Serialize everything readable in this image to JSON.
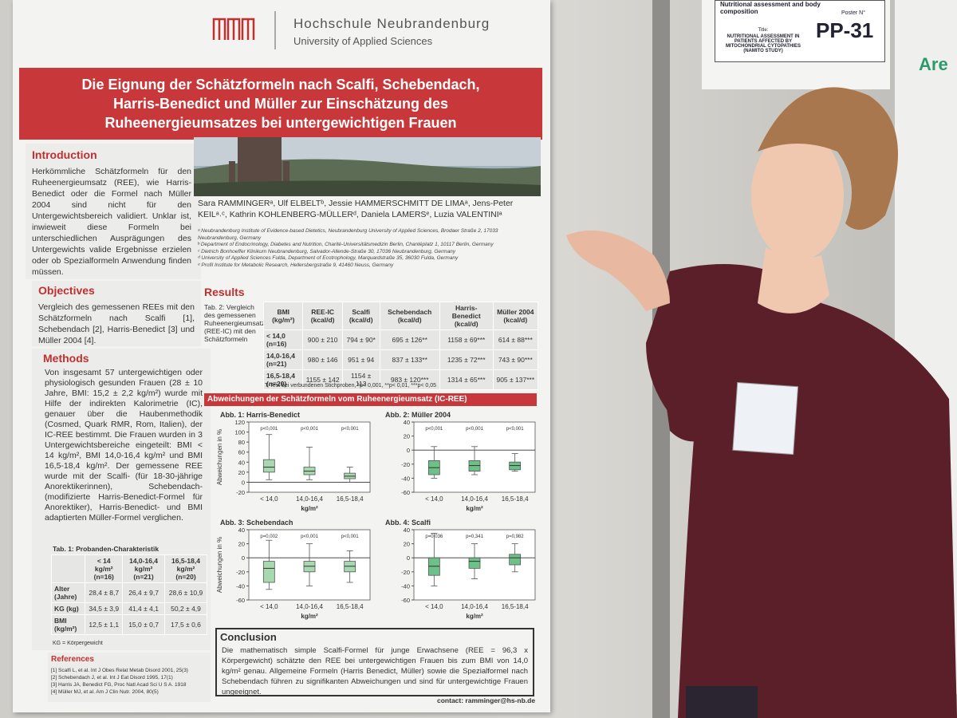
{
  "poster": {
    "logo_name": "Hochschule Neubrandenburg",
    "logo_sub": "University of Applied Sciences",
    "title": "Die Eignung der Schätzformeln nach Scalfi, Schebendach, Harris-Benedict und Müller zur Einschätzung des Ruheenergieumsatzes bei untergewichtigen Frauen",
    "authors": "Sara RAMMINGERᵃ, Ulf ELBELTᵇ, Jessie HAMMERSCHMITT DE LIMAᵃ, Jens-Peter KEILᵃ˒ᶜ, Kathrin KOHLENBERG-MÜLLERᵈ, Daniela LAMERSᵉ, Luzia VALENTINIᵃ",
    "affiliations": [
      "ᵃ Neubrandenburg Institute of Evidence-based Dietetics, Neubrandenburg University of Applied Sciences, Brodaer Straße 2, 17033 Neubrandenburg, Germany",
      "ᵇ Department of Endocrinology, Diabetes and Nutrition, Charité-Universitätsmedizin Berlin, Chantéplatz 1, 10117 Berlin, Germany",
      "ᶜ Dietrich Bonhoeffer Klinikum Neubrandenburg, Salvador-Allende-Straße 30, 17036 Neubrandenburg, Germany",
      "ᵈ University of Applied Sciences Fulda, Department of Ecotrophology, Marquardstraße 35, 36030 Fulda, Germany",
      "ᵉ Profil Institute for Metabolic Research, Hellersbergstraße 9, 41460 Neuss, Germany"
    ],
    "introduction": {
      "heading": "Introduction",
      "text": "Herkömmliche Schätzformeln für den Ruheenergieumsatz (REE), wie Harris-Benedict oder die Formel nach Müller 2004 sind nicht für den Untergewichtsbereich validiert. Unklar ist, inwieweit diese Formeln bei unterschiedlichen Ausprägungen des Untergewichts valide Ergebnisse erzielen oder ob Spezialformeln Anwendung finden müssen."
    },
    "objectives": {
      "heading": "Objectives",
      "text": "Vergleich des gemessenen REEs mit den Schätzformeln nach Scalfi [1], Schebendach [2], Harris-Benedict [3] und Müller 2004 [4]."
    },
    "methods": {
      "heading": "Methods",
      "text": "Von insgesamt 57 untergewichtigen oder physiologisch gesunden Frauen (28 ± 10 Jahre, BMI: 15,2 ± 2,2 kg/m²) wurde mit Hilfe der indirekten Kalorimetrie (IC), genauer über die Haubenmethodik (Cosmed, Quark RMR, Rom, Italien), der IC-REE bestimmt. Die Frauen wurden in 3 Untergewichtsbereiche eingeteilt: BMI < 14 kg/m², BMI 14,0-16,4 kg/m² und BMI 16,5-18,4 kg/m². Der gemessene REE wurde mit der Scalfi- (für 18-30-jährige Anorektikerinnen), Schebendach- (modifizierte Harris-Benedict-Formel für Anorektiker), Harris-Benedict- und BMI adaptierten Müller-Formel verglichen."
    },
    "table1": {
      "title": "Tab. 1: Probanden-Charakteristik",
      "header": [
        "< 14 kg/m² (n=16)",
        "14,0-16,4 kg/m² (n=21)",
        "16,5-18,4 kg/m² (n=20)"
      ],
      "row_labels": [
        "Alter (Jahre)",
        "KG (kg)",
        "BMI (kg/m²)"
      ],
      "rows": [
        [
          "28,4 ± 8,7",
          "26,4 ± 9,7",
          "28,6 ± 10,9"
        ],
        [
          "34,5 ± 3,9",
          "41,4 ± 4,1",
          "50,2 ± 4,9"
        ],
        [
          "12,5 ± 1,1",
          "15,0 ± 0,7",
          "17,5 ± 0,6"
        ]
      ],
      "note": "KG = Körpergewicht"
    },
    "references": {
      "heading": "References",
      "items": [
        "[1] Scalfi L, et al. Int J Obes Relat Metab Disord 2001, 25(3)",
        "[2] Schebendach J, et al. Int J Eat Disord 1995, 17(1)",
        "[3] Harris JA, Benedict FG, Proc Natl Acad Sci U S A. 1918",
        "[4] Müller MJ, et al. Am J Clin Nutr. 2004, 80(5)"
      ]
    },
    "results": {
      "heading": "Results"
    },
    "table2": {
      "caption": "Tab. 2: Vergleich des gemessenen Ruheenergieumsatzes (REE-IC) mit den Schätzformeln",
      "header": [
        "BMI (kg/m²)",
        "REE-IC (kcal/d)",
        "Scalfi (kcal/d)",
        "Schebendach (kcal/d)",
        "Harris-Benedict (kcal/d)",
        "Müller 2004 (kcal/d)"
      ],
      "rows": [
        [
          "< 14,0 (n=16)",
          "900 ± 210",
          "794 ± 90*",
          "695 ± 126**",
          "1158 ± 69***",
          "614 ± 88***"
        ],
        [
          "14,0-16,4 (n=21)",
          "980 ± 146",
          "951 ± 94",
          "837 ± 133**",
          "1235 ± 72***",
          "743 ± 90***"
        ],
        [
          "16,5-18,4 (n=20)",
          "1155 ± 142",
          "1154 ± 113",
          "983 ± 120***",
          "1314 ± 65***",
          "905 ± 137***"
        ]
      ],
      "note": "T-Test bei verbundenen Stichproben, *p< 0,001, **p< 0,01, ***p< 0,05"
    },
    "deviation_heading": "Abweichungen der Schätzformeln vom Ruheenergieumsatz (IC-REE)",
    "conclusion": {
      "heading": "Conclusion",
      "text": "Die mathematisch simple Scalfi-Formel für junge Erwachsene (REE = 96,3 x Körpergewicht) schätzte den REE bei untergewichtigen Frauen bis zum BMI von 14,0 kg/m² genau. Allgemeine Formeln (Harris Benedict, Müller) sowie die Spezialformel nach Schebendach führen zu signifikanten Abweichungen und sind für untergewichtige Frauen ungeeignet."
    },
    "contact": "contact: ramminger@hs-nb.de"
  },
  "chart_data": [
    {
      "type": "box",
      "title": "Abb. 1: Harris-Benedict",
      "y_label": "Abweichungen in %",
      "x_label": "kg/m²",
      "color": "#a8d8b0",
      "categories": [
        "< 14,0",
        "14,0-16,4",
        "16,5-18,4"
      ],
      "pvalues": [
        "p<0,001",
        "p<0,001",
        "p<0,001"
      ],
      "ylim": [
        -20,
        120
      ],
      "yticks": [
        -20,
        0,
        20,
        40,
        60,
        80,
        100,
        120
      ],
      "boxes": [
        {
          "low": 5,
          "q1": 20,
          "median": 30,
          "q3": 45,
          "high": 95
        },
        {
          "low": 5,
          "q1": 15,
          "median": 22,
          "q3": 30,
          "high": 70
        },
        {
          "low": 0,
          "q1": 7,
          "median": 12,
          "q3": 18,
          "high": 30
        }
      ]
    },
    {
      "type": "box",
      "title": "Abb. 2: Müller 2004",
      "x_label": "kg/m²",
      "color": "#6cc088",
      "categories": [
        "< 14,0",
        "14,0-16,4",
        "16,5-18,4"
      ],
      "pvalues": [
        "p<0,001",
        "p<0,001",
        "p<0,001"
      ],
      "ylim": [
        -60,
        40
      ],
      "yticks": [
        -60,
        -40,
        -20,
        0,
        20,
        40
      ],
      "boxes": [
        {
          "low": -40,
          "q1": -35,
          "median": -25,
          "q3": -15,
          "high": 5
        },
        {
          "low": -35,
          "q1": -30,
          "median": -22,
          "q3": -15,
          "high": 5
        },
        {
          "low": -30,
          "q1": -28,
          "median": -22,
          "q3": -17,
          "high": -5
        }
      ]
    },
    {
      "type": "box",
      "title": "Abb. 3: Schebendach",
      "y_label": "Abweichungen in %",
      "x_label": "kg/m²",
      "color": "#a8d8b0",
      "categories": [
        "< 14,0",
        "14,0-16,4",
        "16,5-18,4"
      ],
      "pvalues": [
        "p=0,002",
        "p<0,001",
        "p<0,001"
      ],
      "ylim": [
        -60,
        40
      ],
      "yticks": [
        -60,
        -40,
        -20,
        0,
        20,
        40
      ],
      "boxes": [
        {
          "low": -45,
          "q1": -35,
          "median": -15,
          "q3": -5,
          "high": 25
        },
        {
          "low": -40,
          "q1": -20,
          "median": -12,
          "q3": -5,
          "high": 20
        },
        {
          "low": -35,
          "q1": -20,
          "median": -12,
          "q3": -5,
          "high": 10
        }
      ]
    },
    {
      "type": "box",
      "title": "Abb. 4: Scalfi",
      "x_label": "kg/m²",
      "color": "#6cc088",
      "categories": [
        "< 14,0",
        "14,0-16,4",
        "16,5-18,4"
      ],
      "pvalues": [
        "p=0,036",
        "p=0,341",
        "p=0,982"
      ],
      "ylim": [
        -60,
        40
      ],
      "yticks": [
        -60,
        -40,
        -20,
        0,
        20,
        40
      ],
      "boxes": [
        {
          "low": -40,
          "q1": -25,
          "median": -12,
          "q3": 0,
          "high": 35
        },
        {
          "low": -30,
          "q1": -15,
          "median": -5,
          "q3": 0,
          "high": 20
        },
        {
          "low": -20,
          "q1": -10,
          "median": 0,
          "q3": 5,
          "high": 20
        }
      ]
    }
  ],
  "side_poster": {
    "topic": "Nutritional assessment and body composition",
    "poster_label": "Poster N°",
    "poster_number": "PP-31",
    "title_label": "Title:",
    "title": "NUTRITIONAL ASSESSMENT IN PATIENTS AFFECTED BY MITOCHONDRIAL CYTOPATHIES (NAMITO STUDY)",
    "heading_fragment": "Are"
  }
}
